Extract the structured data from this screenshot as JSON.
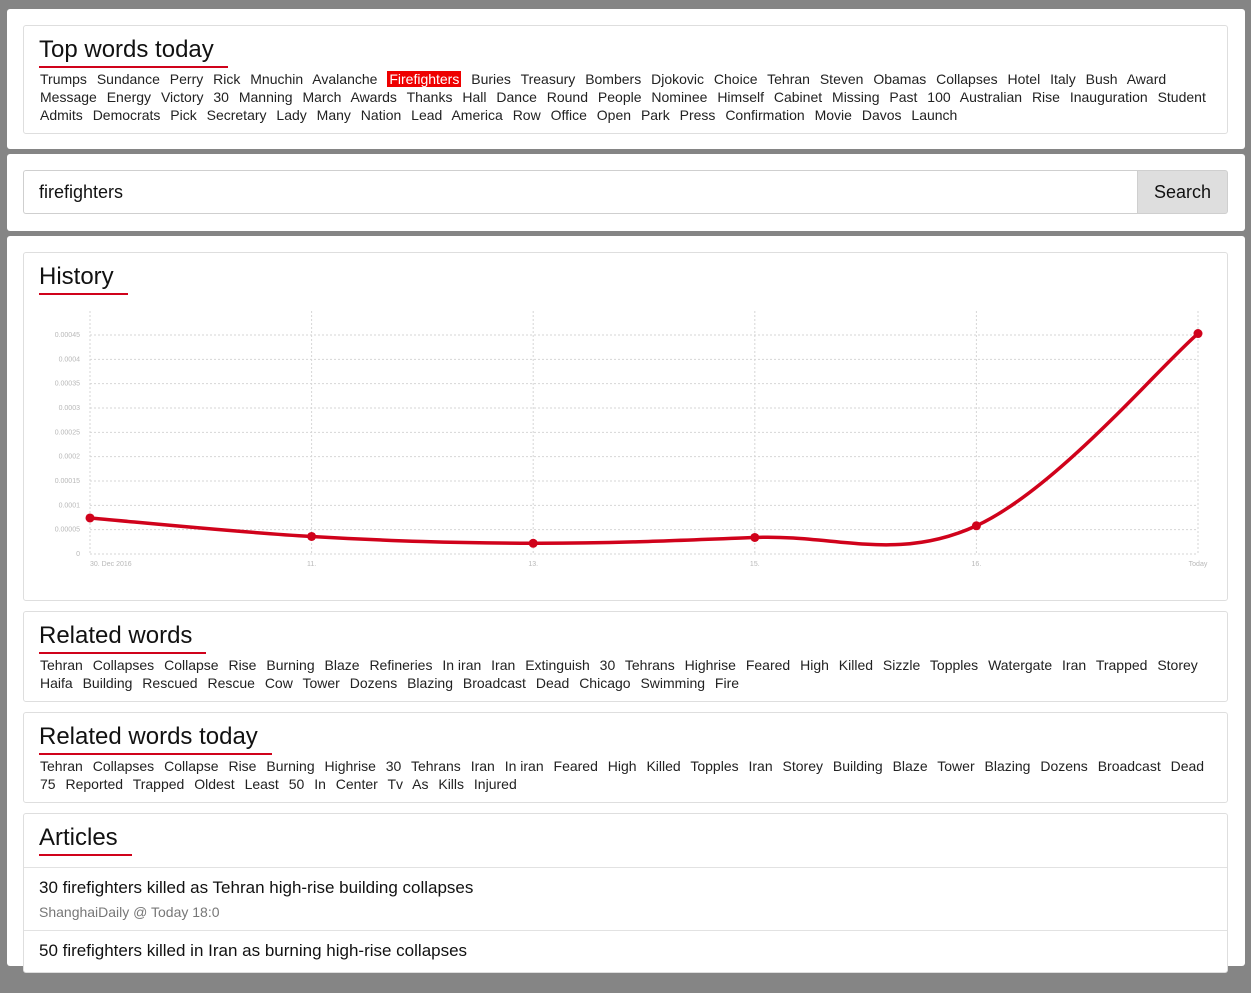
{
  "top_words": {
    "title": "Top words today",
    "words": [
      "Trumps",
      "Sundance",
      "Perry",
      "Rick",
      "Mnuchin",
      "Avalanche",
      "Firefighters",
      "Buries",
      "Treasury",
      "Bombers",
      "Djokovic",
      "Choice",
      "Tehran",
      "Steven",
      "Obamas",
      "Collapses",
      "Hotel",
      "Italy",
      "Bush",
      "Award",
      "Message",
      "Energy",
      "Victory",
      "30",
      "Manning",
      "March",
      "Awards",
      "Thanks",
      "Hall",
      "Dance",
      "Round",
      "People",
      "Nominee",
      "Himself",
      "Cabinet",
      "Missing",
      "Past",
      "100",
      "Australian",
      "Rise",
      "Inauguration",
      "Student",
      "Admits",
      "Democrats",
      "Pick",
      "Secretary",
      "Lady",
      "Many",
      "Nation",
      "Lead",
      "America",
      "Row",
      "Office",
      "Open",
      "Park",
      "Press",
      "Confirmation",
      "Movie",
      "Davos",
      "Launch"
    ],
    "active_word": "Firefighters",
    "active_color": "#ee0000"
  },
  "search": {
    "value": "firefighters",
    "button_label": "Search"
  },
  "history": {
    "title": "History"
  },
  "chart_data": {
    "type": "line",
    "title": "History",
    "categories": [
      "30. Dec 2016",
      "11.",
      "13.",
      "15.",
      "16.",
      "Today"
    ],
    "x_positions": [
      0,
      1,
      2,
      3,
      4,
      5
    ],
    "series": [
      {
        "values": [
          7.4e-05,
          3.6e-05,
          2.2e-05,
          3.4e-05,
          5.8e-05,
          0.000453
        ]
      }
    ],
    "points_x": [
      0,
      1,
      2,
      3,
      4,
      5
    ],
    "y_ticks": [
      "0",
      "0.00005",
      "0.0001",
      "0.00015",
      "0.0002",
      "0.00025",
      "0.0003",
      "0.00035",
      "0.0004",
      "0.00045"
    ],
    "ylim": [
      0,
      0.00045
    ],
    "line_color": "#d0021b",
    "grid": true
  },
  "related_words": {
    "title": "Related words",
    "words": [
      "Tehran",
      "Collapses",
      "Collapse",
      "Rise",
      "Burning",
      "Blaze",
      "Refineries",
      "In iran",
      "Iran",
      "Extinguish",
      "30",
      "Tehrans",
      "Highrise",
      "Feared",
      "High",
      "Killed",
      "Sizzle",
      "Topples",
      "Watergate",
      "Iran",
      "Trapped",
      "Storey",
      "Haifa",
      "Building",
      "Rescued",
      "Rescue",
      "Cow",
      "Tower",
      "Dozens",
      "Blazing",
      "Broadcast",
      "Dead",
      "Chicago",
      "Swimming",
      "Fire"
    ]
  },
  "related_words_today": {
    "title": "Related words today",
    "words": [
      "Tehran",
      "Collapses",
      "Collapse",
      "Rise",
      "Burning",
      "Highrise",
      "30",
      "Tehrans",
      "Iran",
      "In iran",
      "Feared",
      "High",
      "Killed",
      "Topples",
      "Iran",
      "Storey",
      "Building",
      "Blaze",
      "Tower",
      "Blazing",
      "Dozens",
      "Broadcast",
      "Dead",
      "75",
      "Reported",
      "Trapped",
      "Oldest",
      "Least",
      "50",
      "In",
      "Center",
      "Tv",
      "As",
      "Kills",
      "Injured"
    ]
  },
  "articles": {
    "title": "Articles",
    "items": [
      {
        "title": "30 firefighters killed as Tehran high-rise building collapses",
        "meta": "ShanghaiDaily @ Today 18:0"
      },
      {
        "title": "50 firefighters killed in Iran as burning high-rise collapses",
        "meta": ""
      }
    ]
  }
}
